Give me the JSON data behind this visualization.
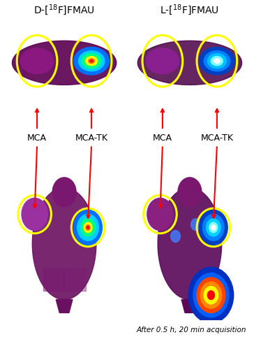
{
  "title_left": "D-[¹⁸F]FMAU",
  "title_right": "L-[¹⁸F]FMAU",
  "label_mca": "MCA",
  "label_mcatk": "MCA-TK",
  "caption": "After 0.5 h, 20 min acquisition",
  "bg_color": "#ffffff",
  "title_fontsize": 10,
  "label_fontsize": 9,
  "caption_fontsize": 7.5,
  "ellipse_color": "yellow",
  "arrow_color": "red",
  "figsize": [
    3.64,
    4.82
  ],
  "dpi": 100
}
